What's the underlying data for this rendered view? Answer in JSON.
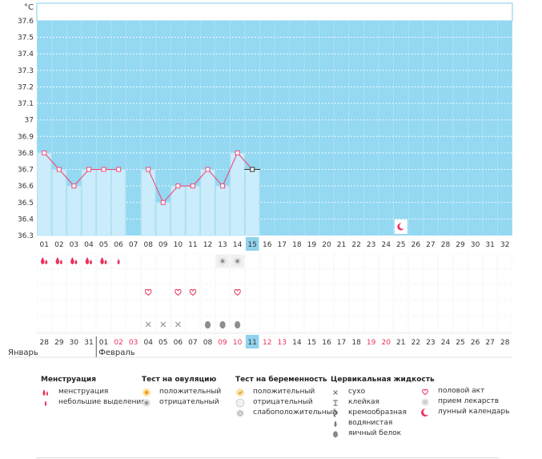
{
  "chart_data": {
    "type": "bar",
    "ylabel": "°C",
    "ylim": [
      36.3,
      37.6
    ],
    "yticks": [
      "37.6",
      "37.5",
      "37.4",
      "37.3",
      "37.2",
      "37.1",
      "37",
      "36.9",
      "36.8",
      "36.7",
      "36.6",
      "36.5",
      "36.4",
      "36.3"
    ],
    "cycle_days": [
      "01",
      "02",
      "03",
      "04",
      "05",
      "06",
      "07",
      "08",
      "09",
      "10",
      "11",
      "12",
      "13",
      "14",
      "15",
      "16",
      "17",
      "18",
      "19",
      "20",
      "21",
      "22",
      "23",
      "24",
      "25",
      "26",
      "27",
      "28",
      "29",
      "30",
      "31",
      "32"
    ],
    "current_day": "15",
    "temperature": [
      36.8,
      36.7,
      36.6,
      36.7,
      36.7,
      36.7,
      null,
      36.7,
      36.5,
      36.6,
      36.6,
      36.7,
      36.6,
      36.8,
      36.7,
      null,
      null,
      null,
      null,
      null,
      null,
      null,
      null,
      null,
      null,
      null,
      null,
      null,
      null,
      null,
      null,
      null
    ],
    "dates": [
      "28",
      "29",
      "30",
      "31",
      "01",
      "02",
      "03",
      "04",
      "05",
      "06",
      "07",
      "08",
      "09",
      "10",
      "11",
      "12",
      "13",
      "14",
      "15",
      "16",
      "17",
      "18",
      "19",
      "20",
      "21",
      "22",
      "23",
      "24",
      "25",
      "26",
      "27",
      "28"
    ],
    "red_dates": [
      5,
      6,
      12,
      13,
      15,
      16,
      22,
      23
    ],
    "current_date_index": 14,
    "months": [
      {
        "label": "Январь",
        "start_index": 0
      },
      {
        "label": "Февраль",
        "start_index": 4
      }
    ],
    "menstruation": [
      "heavy",
      "heavy",
      "heavy",
      "heavy",
      "heavy",
      "light"
    ],
    "ovulation_test": {
      "12": "negative",
      "13": "negative"
    },
    "intercourse_days": [
      7,
      9,
      10,
      13
    ],
    "cervical_fluid": {
      "7": "dry",
      "8": "dry",
      "9": "dry",
      "11": "eggwhite",
      "12": "eggwhite",
      "13": "eggwhite"
    },
    "moon_days": [
      24
    ]
  },
  "colors": {
    "plot_bg": "#94d8f2",
    "bar": "#cbecfa",
    "line": "#ee4b7a",
    "current": "#8fd3ee",
    "red": "#e8335c"
  },
  "legend": {
    "menstruation": {
      "title": "Менструация",
      "items": [
        "менструация",
        "небольшие выделения"
      ]
    },
    "ovulation": {
      "title": "Тест на овуляцию",
      "items": [
        "положительный",
        "отрицательный"
      ]
    },
    "pregnancy": {
      "title": "Тест на беременность",
      "items": [
        "положительный",
        "отрицательный",
        "слабоположительный"
      ]
    },
    "cervical": {
      "title": "Цервикальная жидкость",
      "items": [
        "сухо",
        "клейкая",
        "кремообразная",
        "водянистая",
        "яичный белок"
      ]
    },
    "other": {
      "items": [
        "половой акт",
        "прием лекарств",
        "лунный календарь"
      ]
    }
  }
}
